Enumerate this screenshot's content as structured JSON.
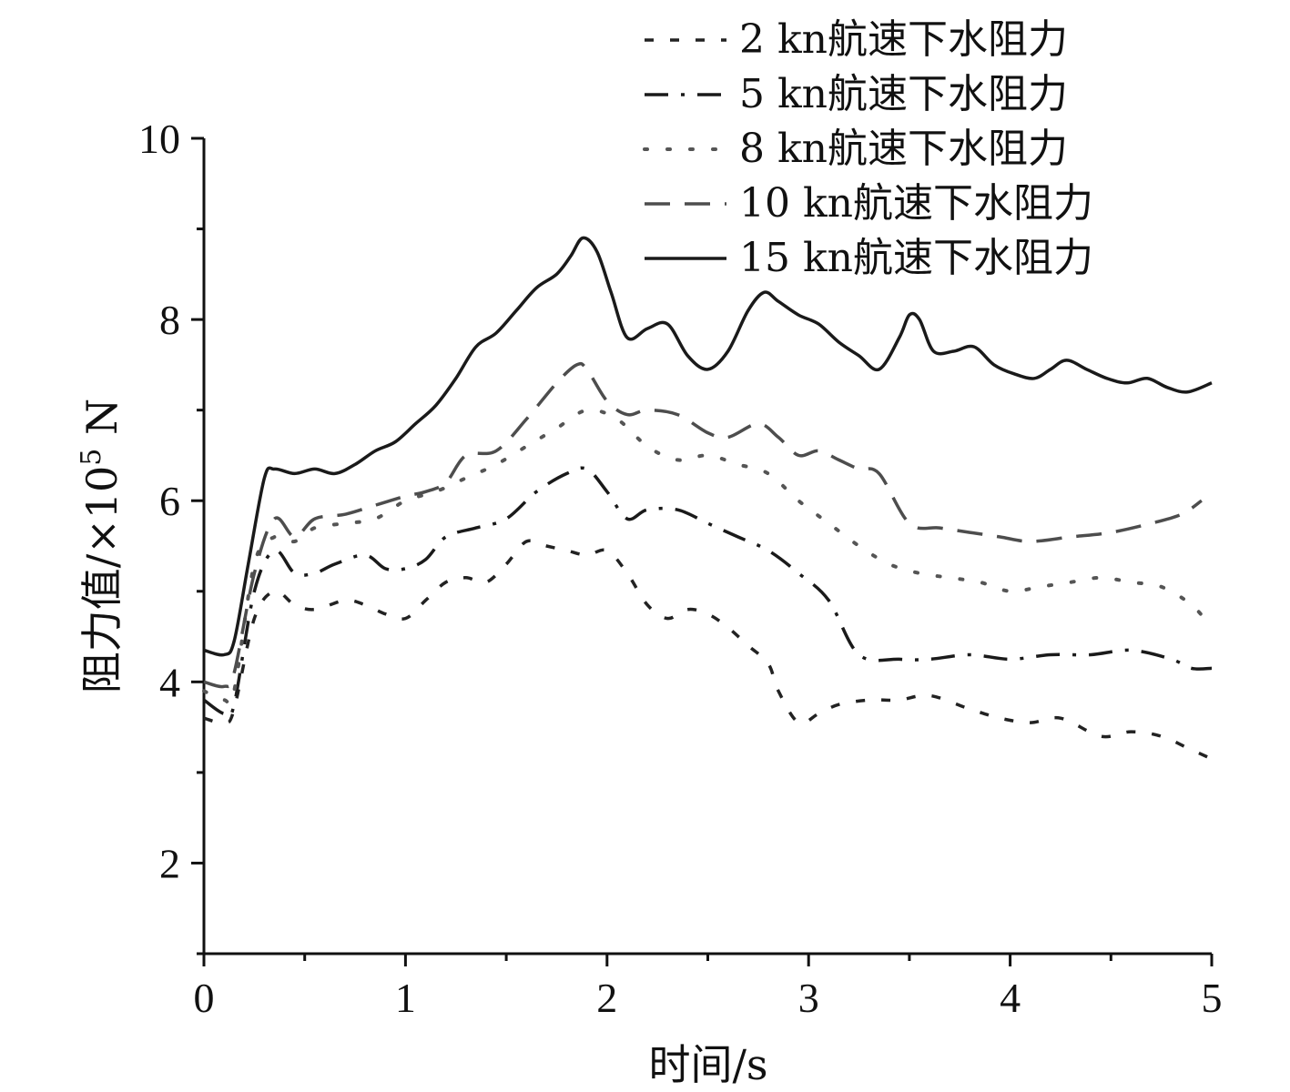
{
  "chart_data": {
    "type": "line",
    "title": "",
    "xlabel": "时间/s",
    "ylabel_main": "阻力值/×10",
    "ylabel_sup": "5",
    "ylabel_unit": " N",
    "xlim": [
      0,
      5
    ],
    "ylim": [
      1,
      10
    ],
    "xticks": [
      0,
      1,
      2,
      3,
      4,
      5
    ],
    "xtick_labels": [
      "0",
      "1",
      "2",
      "3",
      "4",
      "5"
    ],
    "yticks": [
      2,
      4,
      6,
      8,
      10
    ],
    "ytick_labels": [
      "2",
      "4",
      "6",
      "8",
      "10"
    ],
    "grid": false,
    "legend_position": "top-right",
    "series": [
      {
        "name": "2 kn航速下水阻力",
        "style": "dash",
        "color": "#222222",
        "x": [
          0,
          0.1,
          0.15,
          0.25,
          0.35,
          0.45,
          0.55,
          0.7,
          0.8,
          0.9,
          1.0,
          1.1,
          1.2,
          1.3,
          1.4,
          1.5,
          1.6,
          1.7,
          1.8,
          1.9,
          2.0,
          2.1,
          2.2,
          2.3,
          2.4,
          2.5,
          2.6,
          2.7,
          2.8,
          2.85,
          2.95,
          3.05,
          3.15,
          3.3,
          3.45,
          3.6,
          3.8,
          3.95,
          4.1,
          4.25,
          4.45,
          4.6,
          4.75,
          4.9,
          5.0
        ],
        "y": [
          3.6,
          3.55,
          3.7,
          4.7,
          5.0,
          4.85,
          4.8,
          4.9,
          4.85,
          4.75,
          4.7,
          4.9,
          5.1,
          5.15,
          5.1,
          5.3,
          5.55,
          5.5,
          5.45,
          5.4,
          5.45,
          5.2,
          4.85,
          4.7,
          4.8,
          4.75,
          4.6,
          4.4,
          4.2,
          3.9,
          3.55,
          3.65,
          3.75,
          3.8,
          3.8,
          3.85,
          3.7,
          3.6,
          3.55,
          3.6,
          3.4,
          3.45,
          3.4,
          3.25,
          3.15
        ]
      },
      {
        "name": "5 kn航速下水阻力",
        "style": "dashdot",
        "color": "#1a1a1a",
        "x": [
          0,
          0.1,
          0.15,
          0.25,
          0.35,
          0.45,
          0.55,
          0.65,
          0.8,
          0.9,
          1.0,
          1.1,
          1.2,
          1.35,
          1.5,
          1.65,
          1.8,
          1.9,
          2.0,
          2.1,
          2.2,
          2.35,
          2.5,
          2.65,
          2.8,
          2.95,
          3.1,
          3.25,
          3.45,
          3.6,
          3.8,
          4.0,
          4.2,
          4.4,
          4.6,
          4.8,
          4.9,
          5.0
        ],
        "y": [
          3.8,
          3.65,
          3.75,
          5.0,
          5.45,
          5.2,
          5.2,
          5.3,
          5.4,
          5.25,
          5.25,
          5.35,
          5.6,
          5.7,
          5.8,
          6.1,
          6.3,
          6.35,
          6.1,
          5.8,
          5.9,
          5.9,
          5.75,
          5.6,
          5.45,
          5.2,
          4.9,
          4.3,
          4.25,
          4.25,
          4.3,
          4.25,
          4.3,
          4.3,
          4.35,
          4.25,
          4.15,
          4.15
        ]
      },
      {
        "name": "8 kn航速下水阻力",
        "style": "dot",
        "color": "#555555",
        "x": [
          0,
          0.1,
          0.15,
          0.25,
          0.35,
          0.45,
          0.55,
          0.7,
          0.85,
          1.0,
          1.15,
          1.3,
          1.45,
          1.6,
          1.75,
          1.9,
          2.05,
          2.2,
          2.35,
          2.5,
          2.65,
          2.8,
          2.95,
          3.1,
          3.25,
          3.4,
          3.55,
          3.7,
          3.85,
          4.0,
          4.15,
          4.3,
          4.45,
          4.6,
          4.75,
          4.9,
          5.0
        ],
        "y": [
          3.9,
          3.8,
          3.9,
          5.3,
          5.6,
          5.55,
          5.7,
          5.75,
          5.8,
          6.0,
          6.1,
          6.25,
          6.4,
          6.6,
          6.8,
          7.0,
          6.9,
          6.6,
          6.45,
          6.5,
          6.4,
          6.3,
          6.0,
          5.75,
          5.5,
          5.3,
          5.2,
          5.15,
          5.1,
          5.0,
          5.05,
          5.1,
          5.15,
          5.1,
          5.05,
          4.85,
          4.6
        ]
      },
      {
        "name": "10 kn航速下水阻力",
        "style": "longdash",
        "color": "#4d4d4d",
        "x": [
          0,
          0.1,
          0.15,
          0.25,
          0.35,
          0.45,
          0.55,
          0.7,
          0.85,
          1.0,
          1.1,
          1.2,
          1.3,
          1.45,
          1.6,
          1.75,
          1.85,
          1.9,
          2.0,
          2.1,
          2.2,
          2.35,
          2.5,
          2.6,
          2.75,
          2.85,
          2.95,
          3.05,
          3.15,
          3.25,
          3.35,
          3.5,
          3.65,
          3.8,
          3.95,
          4.1,
          4.3,
          4.5,
          4.7,
          4.85,
          4.95
        ],
        "y": [
          4.0,
          3.95,
          4.1,
          5.2,
          5.8,
          5.6,
          5.8,
          5.85,
          5.95,
          6.05,
          6.1,
          6.2,
          6.5,
          6.55,
          6.9,
          7.3,
          7.5,
          7.45,
          7.1,
          6.95,
          7.0,
          6.95,
          6.75,
          6.7,
          6.85,
          6.7,
          6.5,
          6.55,
          6.45,
          6.35,
          6.3,
          5.75,
          5.7,
          5.65,
          5.6,
          5.55,
          5.6,
          5.65,
          5.75,
          5.85,
          6.0
        ]
      },
      {
        "name": "15 kn航速下水阻力",
        "style": "solid",
        "color": "#1a1a1a",
        "x": [
          0,
          0.1,
          0.15,
          0.22,
          0.3,
          0.35,
          0.45,
          0.55,
          0.65,
          0.75,
          0.85,
          0.95,
          1.05,
          1.15,
          1.25,
          1.35,
          1.45,
          1.55,
          1.65,
          1.75,
          1.82,
          1.88,
          1.95,
          2.02,
          2.1,
          2.2,
          2.3,
          2.4,
          2.5,
          2.6,
          2.7,
          2.78,
          2.85,
          2.95,
          3.05,
          3.15,
          3.25,
          3.35,
          3.45,
          3.5,
          3.55,
          3.62,
          3.72,
          3.82,
          3.92,
          4.02,
          4.12,
          4.2,
          4.28,
          4.38,
          4.48,
          4.58,
          4.68,
          4.78,
          4.88,
          5.0
        ],
        "y": [
          4.35,
          4.3,
          4.45,
          5.3,
          6.25,
          6.35,
          6.3,
          6.35,
          6.3,
          6.4,
          6.55,
          6.65,
          6.85,
          7.05,
          7.35,
          7.7,
          7.85,
          8.1,
          8.35,
          8.5,
          8.7,
          8.9,
          8.75,
          8.3,
          7.8,
          7.9,
          7.95,
          7.6,
          7.45,
          7.65,
          8.1,
          8.3,
          8.2,
          8.05,
          7.95,
          7.75,
          7.6,
          7.45,
          7.8,
          8.05,
          8.0,
          7.65,
          7.65,
          7.7,
          7.5,
          7.4,
          7.35,
          7.45,
          7.55,
          7.45,
          7.35,
          7.3,
          7.35,
          7.25,
          7.2,
          7.3
        ]
      }
    ]
  }
}
